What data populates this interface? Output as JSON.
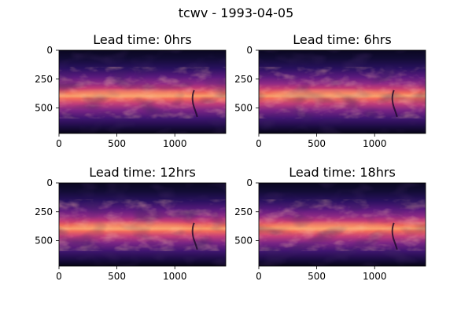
{
  "figure": {
    "suptitle": "tcwv - 1993-04-05"
  },
  "chart_data": [
    {
      "type": "heatmap",
      "title": "Lead time: 0hrs",
      "variable": "tcwv",
      "date": "1993-04-05",
      "lead_time_hrs": 0,
      "colormap": "magma",
      "xlim": [
        0,
        1440
      ],
      "ylim": [
        721,
        0
      ],
      "x_ticks": [
        0,
        500,
        1000
      ],
      "y_ticks": [
        0,
        250,
        500
      ],
      "xlabel": "",
      "ylabel": ""
    },
    {
      "type": "heatmap",
      "title": "Lead time: 6hrs",
      "variable": "tcwv",
      "date": "1993-04-05",
      "lead_time_hrs": 6,
      "colormap": "magma",
      "xlim": [
        0,
        1440
      ],
      "ylim": [
        721,
        0
      ],
      "x_ticks": [
        0,
        500,
        1000
      ],
      "y_ticks": [
        0,
        250,
        500
      ],
      "xlabel": "",
      "ylabel": ""
    },
    {
      "type": "heatmap",
      "title": "Lead time: 12hrs",
      "variable": "tcwv",
      "date": "1993-04-05",
      "lead_time_hrs": 12,
      "colormap": "magma",
      "xlim": [
        0,
        1440
      ],
      "ylim": [
        721,
        0
      ],
      "x_ticks": [
        0,
        500,
        1000
      ],
      "y_ticks": [
        0,
        250,
        500
      ],
      "xlabel": "",
      "ylabel": ""
    },
    {
      "type": "heatmap",
      "title": "Lead time: 18hrs",
      "variable": "tcwv",
      "date": "1993-04-05",
      "lead_time_hrs": 18,
      "colormap": "magma",
      "xlim": [
        0,
        1440
      ],
      "ylim": [
        721,
        0
      ],
      "x_ticks": [
        0,
        500,
        1000
      ],
      "y_ticks": [
        0,
        250,
        500
      ],
      "xlabel": "",
      "ylabel": ""
    }
  ]
}
